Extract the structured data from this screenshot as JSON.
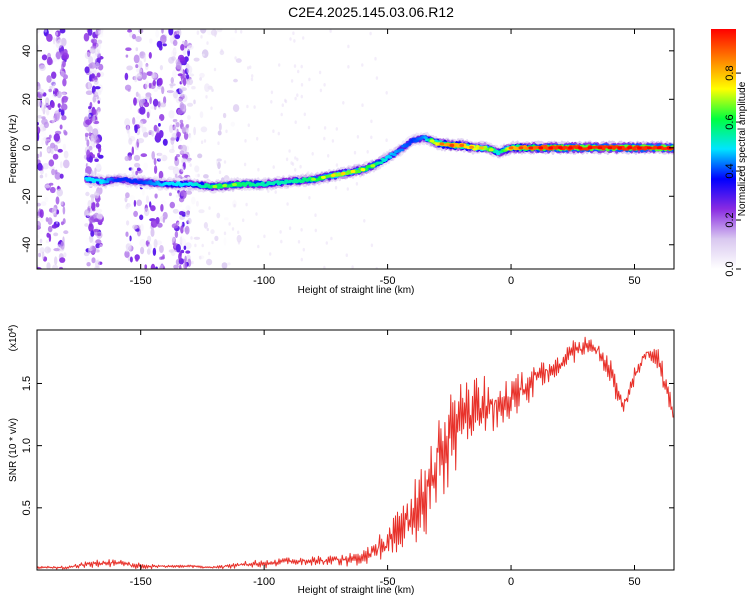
{
  "title": "C2E4.2025.145.03.06.R12",
  "colors": {
    "snr_line": "#e8322b",
    "background": "#ffffff",
    "axis": "#000000",
    "colormap": [
      "#ffffff",
      "#d9c8f0",
      "#8a2be2",
      "#0000ff",
      "#00e5ff",
      "#00ff40",
      "#ffff00",
      "#ff8000",
      "#ff0000"
    ]
  },
  "chart_data": [
    {
      "type": "heatmap",
      "xlabel": "Height of straight line (km)",
      "ylabel": "Frequency (Hz)",
      "xlim": [
        -192,
        66
      ],
      "ylim": [
        -50,
        49
      ],
      "xticks": [
        -150,
        -100,
        -50,
        0,
        50
      ],
      "yticks": [
        -40,
        -20,
        0,
        20,
        40
      ],
      "colorbar": {
        "label": "Normalized spectral amplitude",
        "range": [
          0,
          0.98
        ],
        "ticks": [
          0.0,
          0.2,
          0.4,
          0.6,
          0.8
        ]
      },
      "ridge": {
        "x": [
          -172,
          -165,
          -160,
          -150,
          -140,
          -130,
          -120,
          -110,
          -100,
          -90,
          -80,
          -70,
          -60,
          -55,
          -50,
          -45,
          -40,
          -35,
          -30,
          -25,
          -20,
          -15,
          -10,
          -5,
          0,
          10,
          20,
          30,
          40,
          50,
          60,
          66
        ],
        "frequency": [
          -13,
          -14,
          -13,
          -14,
          -15,
          -15,
          -16,
          -15,
          -15,
          -14,
          -13,
          -11,
          -9,
          -7,
          -4,
          -1,
          3,
          4,
          2,
          1,
          1,
          0,
          0,
          -2,
          0,
          0,
          0,
          0,
          0,
          0,
          0,
          0
        ],
        "amplitude": [
          0.5,
          0.5,
          0.4,
          0.4,
          0.5,
          0.5,
          0.6,
          0.6,
          0.55,
          0.55,
          0.6,
          0.7,
          0.65,
          0.6,
          0.5,
          0.45,
          0.4,
          0.45,
          0.75,
          0.85,
          0.8,
          0.75,
          0.7,
          0.5,
          0.8,
          0.9,
          0.95,
          0.95,
          0.95,
          0.95,
          0.95,
          0.95
        ]
      },
      "noise_bands_x": [
        [
          -192,
          -180
        ],
        [
          -172,
          -166
        ],
        [
          -156,
          -140
        ],
        [
          -138,
          -130
        ],
        [
          -130,
          -110
        ]
      ]
    },
    {
      "type": "line",
      "xlabel": "Height of straight line (km)",
      "ylabel": "SNR (10 * v/v)",
      "y_multiplier": "(x10",
      "y_multiplier_exponent": "4",
      "multiplier_close": ")",
      "xlim": [
        -192,
        66
      ],
      "ylim": [
        0,
        1.93
      ],
      "xticks": [
        -150,
        -100,
        -50,
        0,
        50
      ],
      "yticks": [
        0.5,
        1.0,
        1.5
      ],
      "yticklabels": [
        "0.5",
        "1.0",
        "1.5"
      ],
      "series": [
        {
          "x": [
            -192,
            -180,
            -170,
            -160,
            -150,
            -140,
            -130,
            -120,
            -110,
            -100,
            -90,
            -80,
            -70,
            -60,
            -55,
            -50,
            -45,
            -40,
            -35,
            -30,
            -25,
            -20,
            -15,
            -10,
            -5,
            0,
            5,
            10,
            15,
            20,
            25,
            30,
            35,
            40,
            45,
            50,
            55,
            60,
            66
          ],
          "y": [
            0.02,
            0.02,
            0.05,
            0.06,
            0.03,
            0.03,
            0.03,
            0.02,
            0.04,
            0.05,
            0.07,
            0.07,
            0.08,
            0.1,
            0.15,
            0.22,
            0.35,
            0.45,
            0.6,
            0.85,
            1.0,
            1.2,
            1.3,
            1.3,
            1.35,
            1.35,
            1.45,
            1.55,
            1.6,
            1.65,
            1.75,
            1.8,
            1.78,
            1.6,
            1.3,
            1.55,
            1.75,
            1.7,
            1.2
          ],
          "jitter": [
            0.01,
            0.01,
            0.03,
            0.03,
            0.02,
            0.01,
            0.01,
            0.01,
            0.02,
            0.03,
            0.03,
            0.03,
            0.04,
            0.05,
            0.08,
            0.12,
            0.2,
            0.25,
            0.3,
            0.35,
            0.35,
            0.3,
            0.28,
            0.25,
            0.2,
            0.18,
            0.15,
            0.12,
            0.1,
            0.1,
            0.08,
            0.06,
            0.06,
            0.1,
            0.08,
            0.06,
            0.05,
            0.08,
            0.1
          ]
        }
      ]
    }
  ]
}
